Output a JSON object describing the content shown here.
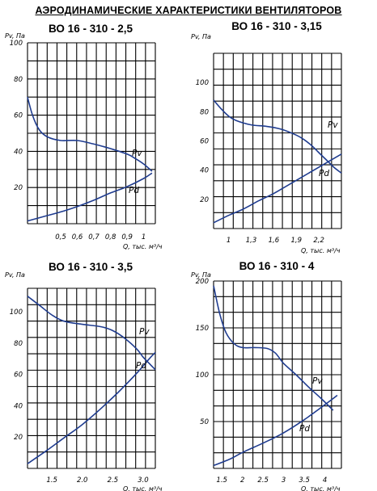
{
  "page_title": "АЭРОДИНАМИЧЕСКИЕ ХАРАКТЕРИСТИКИ ВЕНТИЛЯТОРОВ",
  "colors": {
    "curve": "#1f3c8f",
    "grid": "#000000",
    "text": "#000000"
  },
  "chart_data": [
    {
      "type": "line",
      "title": "ВО 16 - 310 - 2,5",
      "ylabel": "Pv, Па",
      "xlabel": "Q, тыс. м³/ч",
      "xlim": [
        0.3,
        1.07
      ],
      "ylim": [
        0,
        100
      ],
      "x_ticks": [
        0.5,
        0.6,
        0.7,
        0.8,
        0.9,
        1
      ],
      "x_tick_labels": [
        "0,5",
        "0,6",
        "0,7",
        "0,8",
        "0,9",
        "1"
      ],
      "y_ticks": [
        20,
        40,
        60,
        80,
        100
      ],
      "grid": true,
      "series": [
        {
          "name": "Pv",
          "x": [
            0.3,
            0.33,
            0.37,
            0.42,
            0.5,
            0.6,
            0.7,
            0.8,
            0.9,
            0.95,
            1.0,
            1.05
          ],
          "y": [
            70,
            60,
            52,
            48,
            46,
            46,
            44,
            41.5,
            38.5,
            36,
            33,
            29
          ]
        },
        {
          "name": "Pd",
          "x": [
            0.3,
            0.4,
            0.5,
            0.6,
            0.7,
            0.8,
            0.9,
            1.0,
            1.05
          ],
          "y": [
            1.5,
            4,
            6.5,
            9.5,
            13,
            17,
            20.5,
            25,
            28
          ]
        }
      ]
    },
    {
      "type": "line",
      "title": "ВО 16 - 310 - 3,15",
      "ylabel": "Pv, Па",
      "xlabel": "Q, тыс. м³/ч",
      "xlim": [
        0.8,
        2.5
      ],
      "ylim": [
        0,
        120
      ],
      "x_ticks": [
        1,
        1.3,
        1.6,
        1.9,
        2.2
      ],
      "x_tick_labels": [
        "1",
        "1,3",
        "1,6",
        "1,9",
        "2,2"
      ],
      "y_ticks": [
        20,
        40,
        60,
        80,
        100
      ],
      "grid": true,
      "series": [
        {
          "name": "Pv",
          "x": [
            0.8,
            0.9,
            1.0,
            1.1,
            1.3,
            1.5,
            1.7,
            1.9,
            2.0,
            2.1,
            2.2,
            2.3,
            2.4,
            2.5
          ],
          "y": [
            88,
            82,
            77,
            74,
            71,
            70,
            68,
            64,
            61,
            57,
            52,
            47,
            42,
            38
          ]
        },
        {
          "name": "Pd",
          "x": [
            0.8,
            1.0,
            1.2,
            1.4,
            1.6,
            1.8,
            2.0,
            2.2,
            2.4,
            2.5
          ],
          "y": [
            4,
            9,
            13.5,
            19,
            24,
            30,
            36,
            42,
            48,
            51
          ]
        }
      ]
    },
    {
      "type": "line",
      "title": "ВО 16 - 310 - 3,5",
      "ylabel": "Pv, Па",
      "xlabel": "Q, тыс. м³/ч",
      "xlim": [
        1.1,
        3.2
      ],
      "ylim": [
        0,
        115
      ],
      "x_ticks": [
        1.5,
        2.0,
        2.5,
        3.0
      ],
      "x_tick_labels": [
        "1.5",
        "2.0",
        "2.5",
        "3.0"
      ],
      "y_ticks": [
        20,
        40,
        60,
        80,
        100
      ],
      "grid": true,
      "series": [
        {
          "name": "Pv",
          "x": [
            1.1,
            1.3,
            1.5,
            1.7,
            2.0,
            2.3,
            2.5,
            2.7,
            2.9,
            3.0,
            3.1,
            3.2
          ],
          "y": [
            110,
            104,
            98,
            94,
            92,
            90.5,
            88,
            83,
            76,
            71,
            67,
            63
          ]
        },
        {
          "name": "Pd",
          "x": [
            1.1,
            1.4,
            1.7,
            2.0,
            2.3,
            2.6,
            2.9,
            3.1,
            3.2
          ],
          "y": [
            3,
            11,
            19.5,
            28,
            38,
            49,
            61,
            70,
            74
          ]
        }
      ]
    },
    {
      "type": "line",
      "title": "ВО 16 - 310 - 4",
      "ylabel": "Pv, Па",
      "xlabel": "Q, тыс. м³/ч",
      "xlim": [
        1.3,
        4.4
      ],
      "ylim": [
        0,
        200
      ],
      "x_ticks": [
        1.5,
        2,
        2.5,
        3,
        3.5,
        4
      ],
      "x_tick_labels": [
        "1.5",
        "2",
        "2.5",
        "3",
        "3.5",
        "4"
      ],
      "y_ticks": [
        50,
        100,
        150,
        200
      ],
      "grid": true,
      "series": [
        {
          "name": "Pv",
          "x": [
            1.3,
            1.45,
            1.6,
            1.8,
            2.0,
            2.3,
            2.6,
            2.8,
            3.0,
            3.3,
            3.6,
            3.9,
            4.2
          ],
          "y": [
            195,
            165,
            145,
            133,
            129,
            129,
            128,
            123,
            112,
            100,
            87,
            75,
            62
          ]
        },
        {
          "name": "Pd",
          "x": [
            1.3,
            1.7,
            2.0,
            2.5,
            3.0,
            3.5,
            4.0,
            4.3
          ],
          "y": [
            3,
            10,
            17,
            27,
            38,
            52,
            68,
            78
          ]
        }
      ]
    }
  ]
}
